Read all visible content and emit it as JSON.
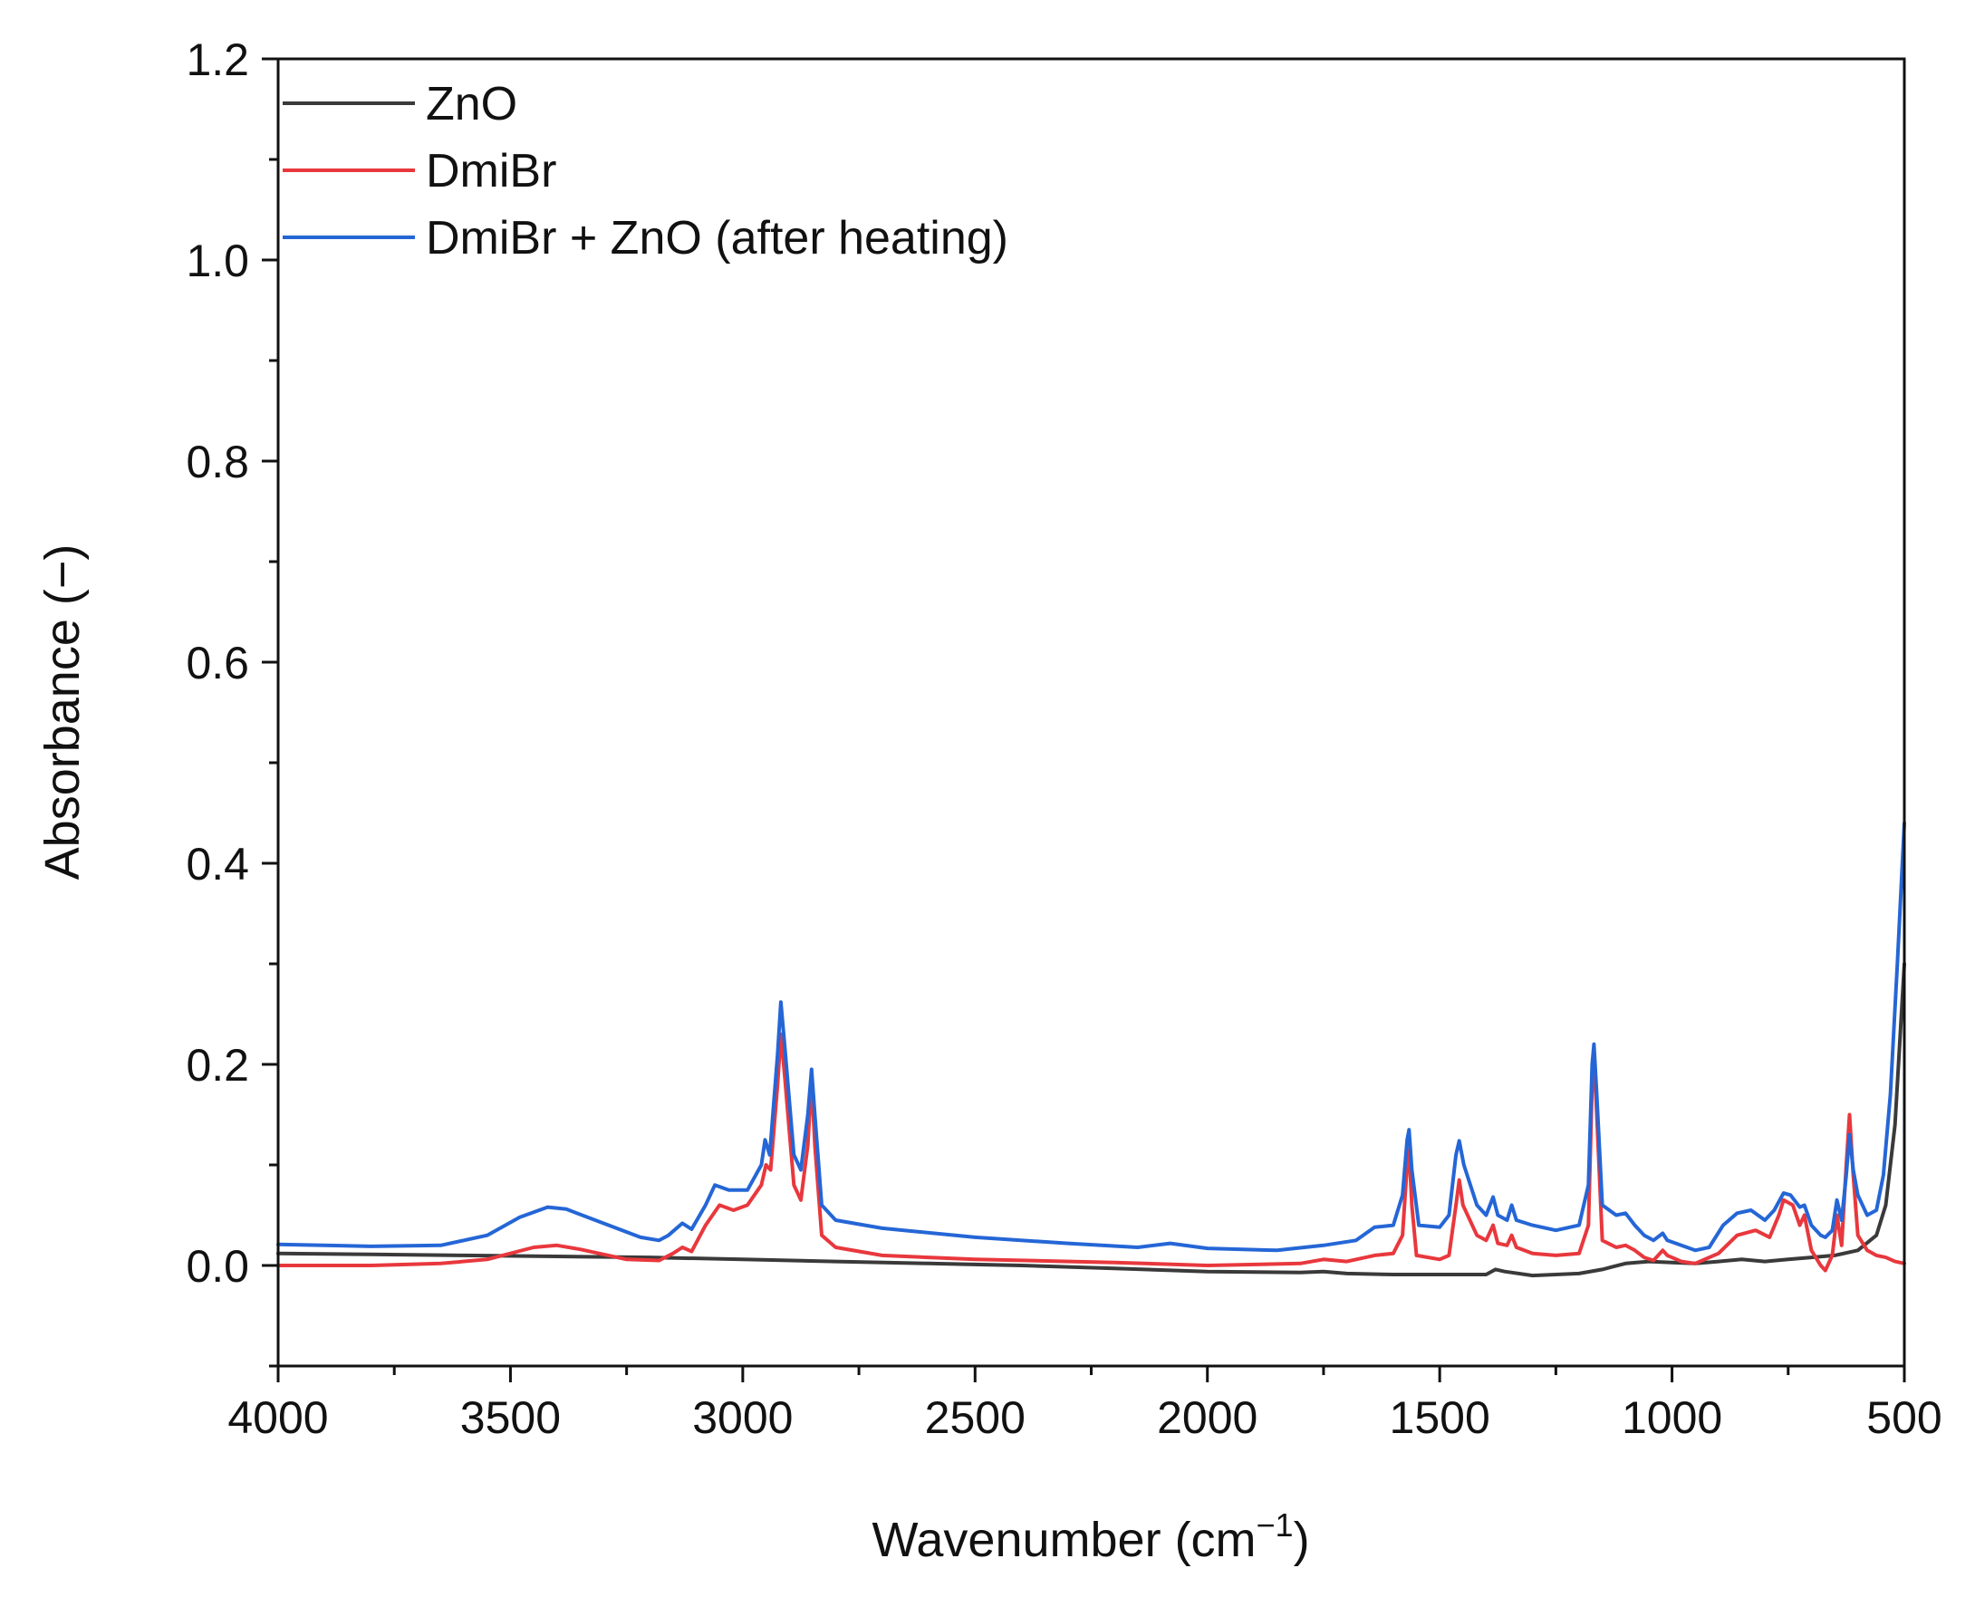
{
  "chart_data": {
    "type": "line",
    "title": "",
    "xlabel": "Wavenumber (cm",
    "xlabel_superscript": "−1",
    "xlabel_suffix": ")",
    "ylabel": "Absorbance (−)",
    "xlim": [
      4000,
      500
    ],
    "ylim": [
      -0.1,
      1.2
    ],
    "x_ticks": [
      4000,
      3500,
      3000,
      2500,
      2000,
      1500,
      1000,
      500
    ],
    "x_tick_labels": [
      "4000",
      "3500",
      "3000",
      "2500",
      "2000",
      "1500",
      "1000",
      "500"
    ],
    "y_ticks": [
      0.0,
      0.2,
      0.4,
      0.6,
      0.8,
      1.0,
      1.2
    ],
    "y_tick_labels": [
      "0.0",
      "0.2",
      "0.4",
      "0.6",
      "0.8",
      "1.0",
      "1.2"
    ],
    "grid": false,
    "legend_position": "top-left",
    "series": [
      {
        "name": "ZnO",
        "color": "#3a3a3a",
        "points": [
          [
            4000,
            0.012
          ],
          [
            3800,
            0.011
          ],
          [
            3600,
            0.01
          ],
          [
            3400,
            0.009
          ],
          [
            3200,
            0.008
          ],
          [
            3000,
            0.006
          ],
          [
            2800,
            0.004
          ],
          [
            2600,
            0.002
          ],
          [
            2400,
            0.0
          ],
          [
            2200,
            -0.003
          ],
          [
            2000,
            -0.006
          ],
          [
            1800,
            -0.007
          ],
          [
            1750,
            -0.006
          ],
          [
            1700,
            -0.008
          ],
          [
            1600,
            -0.009
          ],
          [
            1500,
            -0.009
          ],
          [
            1400,
            -0.009
          ],
          [
            1380,
            -0.004
          ],
          [
            1360,
            -0.006
          ],
          [
            1300,
            -0.01
          ],
          [
            1200,
            -0.008
          ],
          [
            1150,
            -0.004
          ],
          [
            1100,
            0.002
          ],
          [
            1050,
            0.004
          ],
          [
            1000,
            0.003
          ],
          [
            950,
            0.002
          ],
          [
            900,
            0.004
          ],
          [
            850,
            0.006
          ],
          [
            800,
            0.004
          ],
          [
            750,
            0.006
          ],
          [
            700,
            0.008
          ],
          [
            650,
            0.01
          ],
          [
            600,
            0.015
          ],
          [
            560,
            0.03
          ],
          [
            540,
            0.06
          ],
          [
            520,
            0.14
          ],
          [
            500,
            0.3
          ]
        ]
      },
      {
        "name": "DmiBr",
        "color": "#e8383d",
        "points": [
          [
            4000,
            0.0
          ],
          [
            3800,
            0.0
          ],
          [
            3650,
            0.002
          ],
          [
            3550,
            0.006
          ],
          [
            3450,
            0.018
          ],
          [
            3400,
            0.02
          ],
          [
            3350,
            0.016
          ],
          [
            3250,
            0.006
          ],
          [
            3180,
            0.005
          ],
          [
            3150,
            0.012
          ],
          [
            3130,
            0.018
          ],
          [
            3110,
            0.014
          ],
          [
            3080,
            0.04
          ],
          [
            3050,
            0.06
          ],
          [
            3020,
            0.055
          ],
          [
            2990,
            0.06
          ],
          [
            2960,
            0.08
          ],
          [
            2950,
            0.1
          ],
          [
            2940,
            0.095
          ],
          [
            2925,
            0.18
          ],
          [
            2918,
            0.23
          ],
          [
            2910,
            0.19
          ],
          [
            2890,
            0.08
          ],
          [
            2875,
            0.065
          ],
          [
            2860,
            0.12
          ],
          [
            2852,
            0.185
          ],
          [
            2845,
            0.12
          ],
          [
            2830,
            0.03
          ],
          [
            2800,
            0.018
          ],
          [
            2700,
            0.01
          ],
          [
            2500,
            0.006
          ],
          [
            2200,
            0.003
          ],
          [
            2000,
            0.0
          ],
          [
            1800,
            0.002
          ],
          [
            1750,
            0.006
          ],
          [
            1700,
            0.004
          ],
          [
            1640,
            0.01
          ],
          [
            1600,
            0.012
          ],
          [
            1580,
            0.03
          ],
          [
            1570,
            0.1
          ],
          [
            1566,
            0.115
          ],
          [
            1560,
            0.06
          ],
          [
            1550,
            0.01
          ],
          [
            1500,
            0.006
          ],
          [
            1480,
            0.01
          ],
          [
            1465,
            0.06
          ],
          [
            1458,
            0.085
          ],
          [
            1450,
            0.06
          ],
          [
            1420,
            0.03
          ],
          [
            1400,
            0.025
          ],
          [
            1385,
            0.04
          ],
          [
            1375,
            0.022
          ],
          [
            1355,
            0.02
          ],
          [
            1345,
            0.03
          ],
          [
            1335,
            0.018
          ],
          [
            1300,
            0.012
          ],
          [
            1250,
            0.01
          ],
          [
            1200,
            0.012
          ],
          [
            1180,
            0.04
          ],
          [
            1172,
            0.18
          ],
          [
            1168,
            0.21
          ],
          [
            1162,
            0.15
          ],
          [
            1150,
            0.025
          ],
          [
            1120,
            0.018
          ],
          [
            1100,
            0.02
          ],
          [
            1080,
            0.015
          ],
          [
            1060,
            0.008
          ],
          [
            1040,
            0.005
          ],
          [
            1020,
            0.015
          ],
          [
            1010,
            0.01
          ],
          [
            980,
            0.004
          ],
          [
            950,
            0.002
          ],
          [
            900,
            0.012
          ],
          [
            860,
            0.03
          ],
          [
            820,
            0.035
          ],
          [
            790,
            0.028
          ],
          [
            770,
            0.05
          ],
          [
            760,
            0.065
          ],
          [
            740,
            0.06
          ],
          [
            725,
            0.04
          ],
          [
            715,
            0.05
          ],
          [
            700,
            0.015
          ],
          [
            680,
            0.0
          ],
          [
            670,
            -0.005
          ],
          [
            655,
            0.01
          ],
          [
            645,
            0.05
          ],
          [
            635,
            0.02
          ],
          [
            625,
            0.1
          ],
          [
            618,
            0.15
          ],
          [
            610,
            0.09
          ],
          [
            600,
            0.03
          ],
          [
            580,
            0.015
          ],
          [
            560,
            0.01
          ],
          [
            540,
            0.008
          ],
          [
            520,
            0.004
          ],
          [
            500,
            0.002
          ]
        ]
      },
      {
        "name": "DmiBr + ZnO (after heating)",
        "color": "#2566d6",
        "points": [
          [
            4000,
            0.021
          ],
          [
            3800,
            0.019
          ],
          [
            3650,
            0.02
          ],
          [
            3550,
            0.03
          ],
          [
            3480,
            0.048
          ],
          [
            3420,
            0.058
          ],
          [
            3380,
            0.056
          ],
          [
            3300,
            0.042
          ],
          [
            3220,
            0.028
          ],
          [
            3180,
            0.025
          ],
          [
            3160,
            0.03
          ],
          [
            3130,
            0.042
          ],
          [
            3110,
            0.036
          ],
          [
            3080,
            0.06
          ],
          [
            3060,
            0.08
          ],
          [
            3030,
            0.075
          ],
          [
            2990,
            0.075
          ],
          [
            2960,
            0.1
          ],
          [
            2952,
            0.125
          ],
          [
            2942,
            0.11
          ],
          [
            2925,
            0.21
          ],
          [
            2918,
            0.262
          ],
          [
            2910,
            0.22
          ],
          [
            2890,
            0.11
          ],
          [
            2875,
            0.095
          ],
          [
            2860,
            0.15
          ],
          [
            2852,
            0.195
          ],
          [
            2845,
            0.15
          ],
          [
            2830,
            0.06
          ],
          [
            2800,
            0.045
          ],
          [
            2700,
            0.037
          ],
          [
            2500,
            0.028
          ],
          [
            2300,
            0.022
          ],
          [
            2150,
            0.018
          ],
          [
            2080,
            0.022
          ],
          [
            2000,
            0.017
          ],
          [
            1850,
            0.015
          ],
          [
            1750,
            0.02
          ],
          [
            1680,
            0.025
          ],
          [
            1640,
            0.038
          ],
          [
            1600,
            0.04
          ],
          [
            1580,
            0.07
          ],
          [
            1570,
            0.125
          ],
          [
            1566,
            0.135
          ],
          [
            1560,
            0.095
          ],
          [
            1545,
            0.04
          ],
          [
            1500,
            0.038
          ],
          [
            1480,
            0.05
          ],
          [
            1465,
            0.11
          ],
          [
            1458,
            0.124
          ],
          [
            1448,
            0.1
          ],
          [
            1420,
            0.06
          ],
          [
            1400,
            0.05
          ],
          [
            1385,
            0.068
          ],
          [
            1375,
            0.05
          ],
          [
            1355,
            0.045
          ],
          [
            1345,
            0.06
          ],
          [
            1335,
            0.045
          ],
          [
            1300,
            0.04
          ],
          [
            1250,
            0.035
          ],
          [
            1200,
            0.04
          ],
          [
            1180,
            0.08
          ],
          [
            1172,
            0.2
          ],
          [
            1168,
            0.22
          ],
          [
            1162,
            0.17
          ],
          [
            1150,
            0.06
          ],
          [
            1120,
            0.05
          ],
          [
            1100,
            0.052
          ],
          [
            1080,
            0.04
          ],
          [
            1060,
            0.03
          ],
          [
            1040,
            0.025
          ],
          [
            1020,
            0.032
          ],
          [
            1010,
            0.025
          ],
          [
            980,
            0.02
          ],
          [
            950,
            0.015
          ],
          [
            920,
            0.018
          ],
          [
            890,
            0.04
          ],
          [
            860,
            0.052
          ],
          [
            830,
            0.055
          ],
          [
            800,
            0.045
          ],
          [
            780,
            0.055
          ],
          [
            760,
            0.072
          ],
          [
            745,
            0.07
          ],
          [
            725,
            0.058
          ],
          [
            715,
            0.06
          ],
          [
            700,
            0.04
          ],
          [
            680,
            0.03
          ],
          [
            670,
            0.028
          ],
          [
            655,
            0.035
          ],
          [
            645,
            0.065
          ],
          [
            635,
            0.045
          ],
          [
            625,
            0.09
          ],
          [
            618,
            0.13
          ],
          [
            610,
            0.095
          ],
          [
            600,
            0.07
          ],
          [
            580,
            0.05
          ],
          [
            560,
            0.055
          ],
          [
            545,
            0.09
          ],
          [
            530,
            0.17
          ],
          [
            515,
            0.3
          ],
          [
            500,
            0.44
          ]
        ]
      }
    ]
  }
}
